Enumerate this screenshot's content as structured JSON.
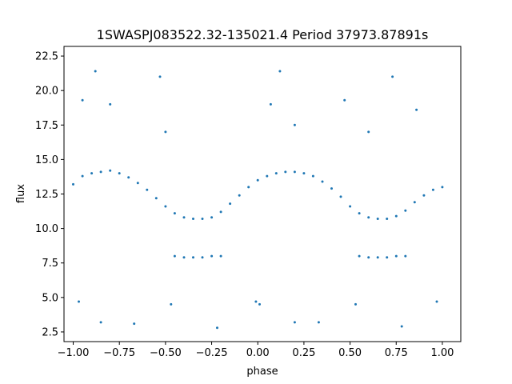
{
  "chart_data": {
    "type": "scatter",
    "title": "1SWASPJ083522.32-135021.4 Period 37973.87891s",
    "xlabel": "phase",
    "ylabel": "flux",
    "xlim": [
      -1.05,
      1.1
    ],
    "ylim": [
      1.8,
      23.2
    ],
    "xticks": [
      -1.0,
      -0.75,
      -0.5,
      -0.25,
      0.0,
      0.25,
      0.5,
      0.75,
      1.0
    ],
    "xtick_labels": [
      "−1.00",
      "−0.75",
      "−0.50",
      "−0.25",
      "0.00",
      "0.25",
      "0.50",
      "0.75",
      "1.00"
    ],
    "yticks": [
      2.5,
      5.0,
      7.5,
      10.0,
      12.5,
      15.0,
      17.5,
      20.0,
      22.5
    ],
    "ytick_labels": [
      "2.5",
      "5.0",
      "7.5",
      "10.0",
      "12.5",
      "15.0",
      "17.5",
      "20.0",
      "22.5"
    ],
    "grid": false,
    "series": [
      {
        "color": "#1f77b4",
        "points": [
          [
            -1.0,
            13.2
          ],
          [
            -0.95,
            13.8
          ],
          [
            -0.9,
            14.0
          ],
          [
            -0.85,
            14.1
          ],
          [
            -0.8,
            14.2
          ],
          [
            -0.75,
            14.0
          ],
          [
            -0.7,
            13.7
          ],
          [
            -0.65,
            13.3
          ],
          [
            -0.6,
            12.8
          ],
          [
            -0.55,
            12.2
          ],
          [
            -0.5,
            11.6
          ],
          [
            -0.45,
            11.1
          ],
          [
            -0.4,
            10.8
          ],
          [
            -0.35,
            10.7
          ],
          [
            -0.3,
            10.7
          ],
          [
            -0.25,
            10.8
          ],
          [
            -0.2,
            11.2
          ],
          [
            -0.15,
            11.8
          ],
          [
            -0.1,
            12.4
          ],
          [
            -0.05,
            13.0
          ],
          [
            0.0,
            13.5
          ],
          [
            0.05,
            13.8
          ],
          [
            0.1,
            14.0
          ],
          [
            0.15,
            14.1
          ],
          [
            0.2,
            14.1
          ],
          [
            0.25,
            14.0
          ],
          [
            0.3,
            13.8
          ],
          [
            0.35,
            13.4
          ],
          [
            0.4,
            12.9
          ],
          [
            0.45,
            12.3
          ],
          [
            0.5,
            11.6
          ],
          [
            0.55,
            11.1
          ],
          [
            0.6,
            10.8
          ],
          [
            0.65,
            10.7
          ],
          [
            0.7,
            10.7
          ],
          [
            0.75,
            10.9
          ],
          [
            0.8,
            11.3
          ],
          [
            0.85,
            11.9
          ],
          [
            0.9,
            12.4
          ],
          [
            0.95,
            12.8
          ],
          [
            1.0,
            13.0
          ],
          [
            -0.45,
            8.0
          ],
          [
            -0.4,
            7.9
          ],
          [
            -0.35,
            7.9
          ],
          [
            -0.3,
            7.9
          ],
          [
            -0.25,
            8.0
          ],
          [
            -0.2,
            8.0
          ],
          [
            0.55,
            8.0
          ],
          [
            0.6,
            7.9
          ],
          [
            0.65,
            7.9
          ],
          [
            0.7,
            7.9
          ],
          [
            0.75,
            8.0
          ],
          [
            0.8,
            8.0
          ],
          [
            -0.88,
            21.4
          ],
          [
            0.12,
            21.4
          ],
          [
            0.73,
            21.0
          ],
          [
            -0.53,
            21.0
          ],
          [
            0.47,
            19.3
          ],
          [
            0.86,
            18.6
          ],
          [
            -0.8,
            19.0
          ],
          [
            -0.95,
            19.3
          ],
          [
            0.07,
            19.0
          ],
          [
            0.2,
            17.5
          ],
          [
            -0.5,
            17.0
          ],
          [
            0.6,
            17.0
          ],
          [
            -0.97,
            4.7
          ],
          [
            -0.01,
            4.7
          ],
          [
            0.01,
            4.5
          ],
          [
            0.97,
            4.7
          ],
          [
            -0.47,
            4.5
          ],
          [
            0.53,
            4.5
          ],
          [
            -0.85,
            3.2
          ],
          [
            -0.67,
            3.1
          ],
          [
            0.2,
            3.2
          ],
          [
            0.33,
            3.2
          ],
          [
            0.78,
            2.9
          ],
          [
            -0.22,
            2.8
          ]
        ]
      }
    ]
  }
}
